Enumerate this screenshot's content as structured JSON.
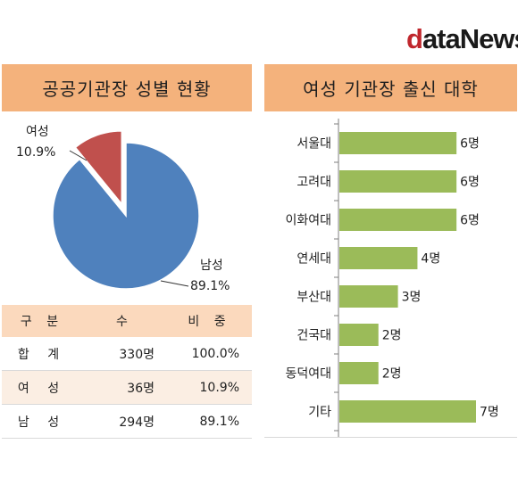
{
  "logo": {
    "d": "d",
    "rest": "ataNews"
  },
  "left_panel": {
    "title": "공공기관장 성별 현황"
  },
  "right_panel": {
    "title": "여성 기관장 출신 대학"
  },
  "table": {
    "headers": [
      "구 분",
      "수",
      "비 중"
    ],
    "rows": [
      [
        "합 계",
        "330명",
        "100.0%"
      ],
      [
        "여 성",
        "36명",
        "10.9%"
      ],
      [
        "남 성",
        "294명",
        "89.1%"
      ]
    ]
  },
  "chart_data": [
    {
      "type": "pie",
      "title": "공공기관장 성별 현황",
      "slices": [
        {
          "label": "남성",
          "value": 89.1,
          "value_label": "89.1%",
          "color": "#4f81bd"
        },
        {
          "label": "여성",
          "value": 10.9,
          "value_label": "10.9%",
          "color": "#c0504d",
          "exploded": true
        }
      ]
    },
    {
      "type": "bar",
      "orientation": "horizontal",
      "title": "여성 기관장 출신 대학",
      "categories": [
        "서울대",
        "고려대",
        "이화여대",
        "연세대",
        "부산대",
        "건국대",
        "동덕여대",
        "기타"
      ],
      "values": [
        6,
        6,
        6,
        4,
        3,
        2,
        2,
        7
      ],
      "value_labels": [
        "6명",
        "6명",
        "6명",
        "4명",
        "3명",
        "2명",
        "2명",
        "7명"
      ],
      "xlim": [
        0,
        7
      ],
      "color": "#9bbb59"
    }
  ]
}
